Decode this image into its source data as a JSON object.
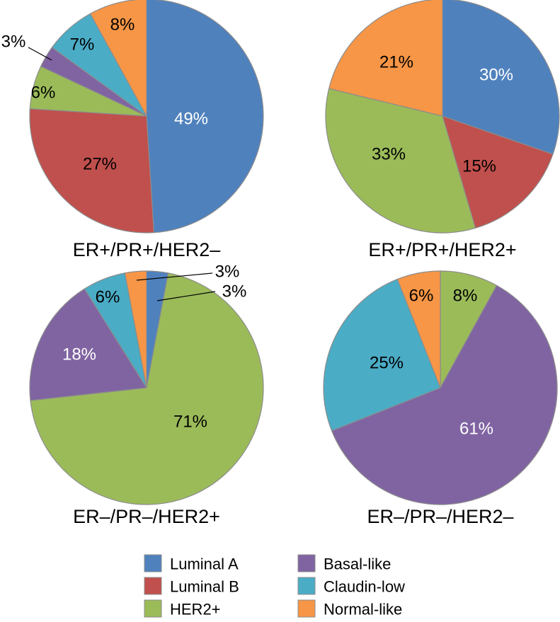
{
  "chart_data": [
    {
      "type": "pie",
      "title": "ER+/PR+/HER2–",
      "slices": [
        {
          "category": "Luminal A",
          "value": 49,
          "label": "49%"
        },
        {
          "category": "Luminal B",
          "value": 27,
          "label": "27%"
        },
        {
          "category": "HER2+",
          "value": 6,
          "label": "6%"
        },
        {
          "category": "Basal-like",
          "value": 3,
          "label": "3%"
        },
        {
          "category": "Claudin-low",
          "value": 7,
          "label": "7%"
        },
        {
          "category": "Normal-like",
          "value": 8,
          "label": "8%"
        }
      ]
    },
    {
      "type": "pie",
      "title": "ER+/PR+/HER2+",
      "slices": [
        {
          "category": "Luminal A",
          "value": 30,
          "label": "30%"
        },
        {
          "category": "Luminal B",
          "value": 15,
          "label": "15%"
        },
        {
          "category": "HER2+",
          "value": 33,
          "label": "33%"
        },
        {
          "category": "Normal-like",
          "value": 21,
          "label": "21%"
        }
      ]
    },
    {
      "type": "pie",
      "title": "ER–/PR–/HER2+",
      "slices": [
        {
          "category": "Luminal A",
          "value": 3,
          "label": "3%"
        },
        {
          "category": "HER2+",
          "value": 71,
          "label": "71%"
        },
        {
          "category": "Basal-like",
          "value": 18,
          "label": "18%"
        },
        {
          "category": "Claudin-low",
          "value": 6,
          "label": "6%"
        },
        {
          "category": "Normal-like",
          "value": 3,
          "label": "3%"
        }
      ]
    },
    {
      "type": "pie",
      "title": "ER–/PR–/HER2–",
      "slices": [
        {
          "category": "HER2+",
          "value": 8,
          "label": "8%"
        },
        {
          "category": "Basal-like",
          "value": 61,
          "label": "61%"
        },
        {
          "category": "Claudin-low",
          "value": 25,
          "label": "25%"
        },
        {
          "category": "Normal-like",
          "value": 6,
          "label": "6%"
        }
      ]
    }
  ],
  "legend": {
    "items": [
      {
        "name": "Luminal A",
        "color": "#4f81bd"
      },
      {
        "name": "Luminal B",
        "color": "#c0504d"
      },
      {
        "name": "HER2+",
        "color": "#9bbb59"
      },
      {
        "name": "Basal-like",
        "color": "#8064a2"
      },
      {
        "name": "Claudin-low",
        "color": "#4bacc6"
      },
      {
        "name": "Normal-like",
        "color": "#f79646"
      }
    ]
  },
  "style": {
    "slice_border_color": "#8c8c8c",
    "white_label_categories": [
      "Luminal A",
      "Basal-like"
    ]
  }
}
